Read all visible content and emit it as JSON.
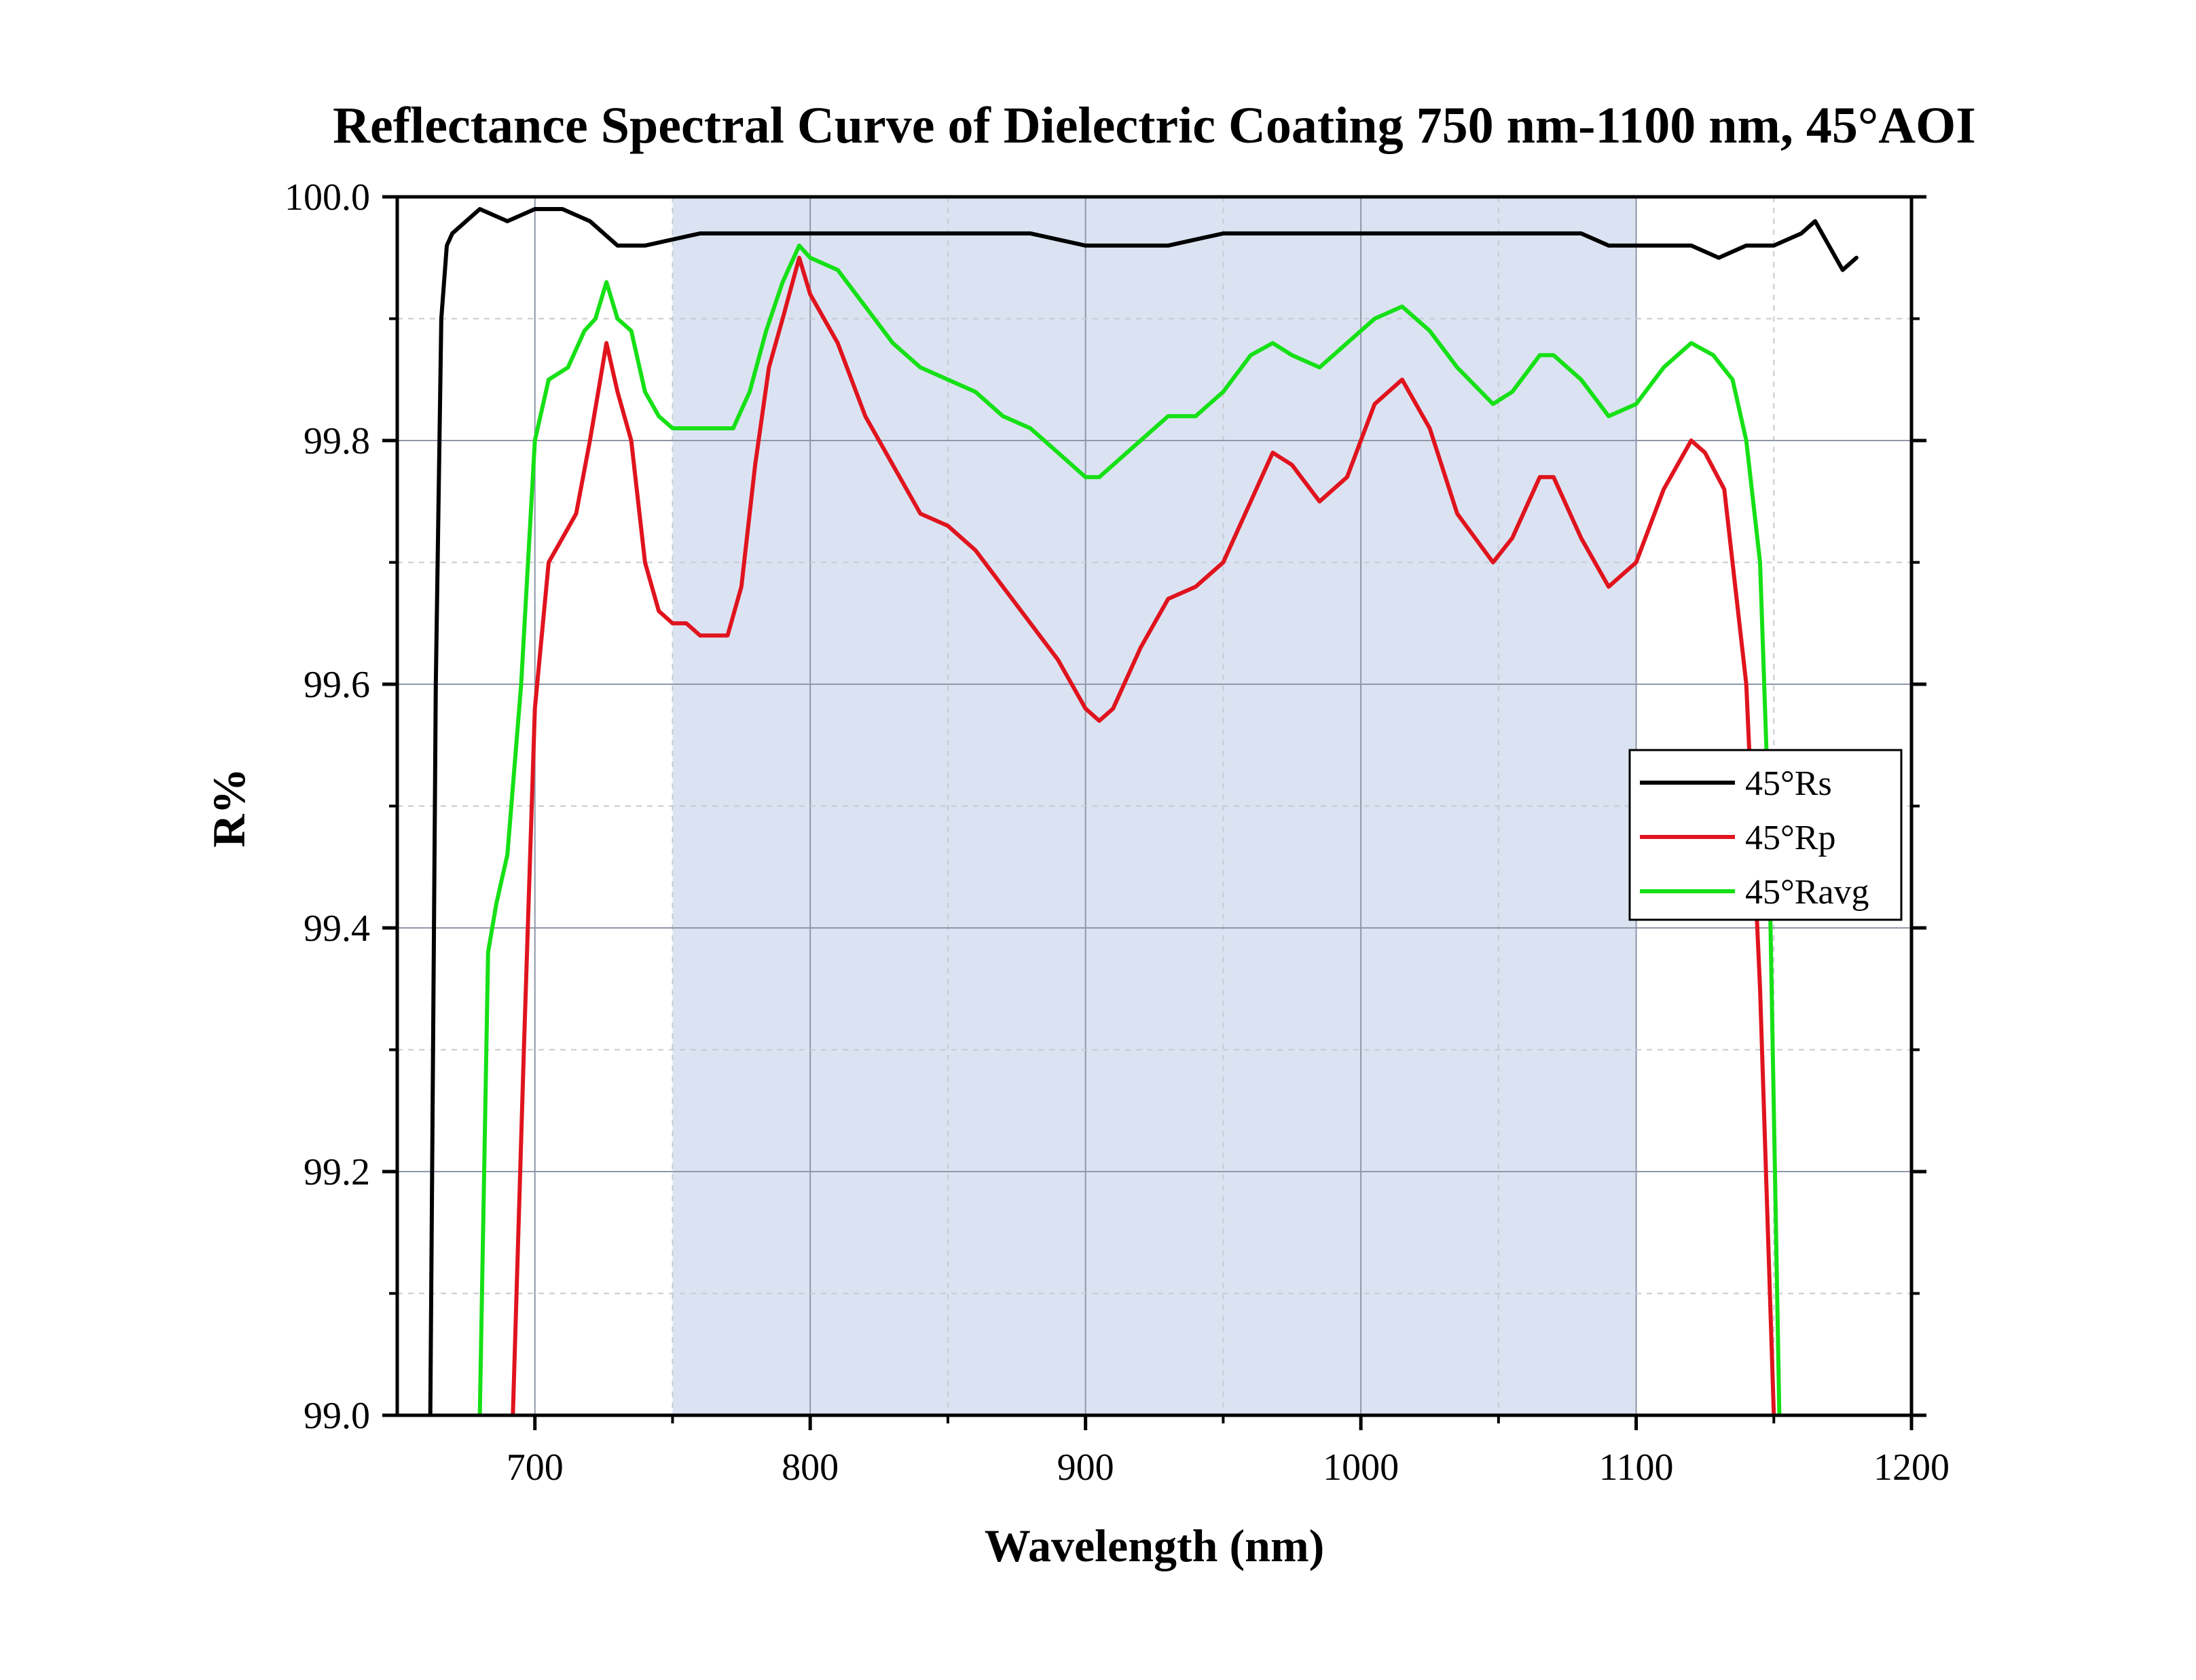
{
  "chart_data": {
    "type": "line",
    "title": "Reflectance Spectral Curve of Dielectric Coating 750 nm-1100 nm,  45°AOI",
    "xlabel": "Wavelength (nm)",
    "ylabel": "R%",
    "xlim": [
      650,
      1200
    ],
    "ylim": [
      99.0,
      100.0
    ],
    "xticks": [
      "700",
      "800",
      "900",
      "1000",
      "1100",
      "1200"
    ],
    "yticks": [
      "99.0",
      "99.2",
      "99.4",
      "99.6",
      "99.8",
      "100.0"
    ],
    "grid": true,
    "legend_position": "right",
    "shaded_band": {
      "x_start": 750,
      "x_end": 1100,
      "color": "#dbe3f2"
    },
    "series": [
      {
        "name": "45°Rs",
        "color": "#000000",
        "x": [
          662,
          664,
          666,
          668,
          670,
          675,
          680,
          690,
          700,
          710,
          720,
          730,
          740,
          760,
          780,
          800,
          850,
          880,
          900,
          910,
          930,
          950,
          1000,
          1050,
          1080,
          1090,
          1100,
          1110,
          1120,
          1130,
          1140,
          1150,
          1160,
          1165,
          1170,
          1175,
          1180
        ],
        "y": [
          99.0,
          99.6,
          99.9,
          99.96,
          99.97,
          99.98,
          99.99,
          99.98,
          99.99,
          99.99,
          99.98,
          99.96,
          99.96,
          99.97,
          99.97,
          99.97,
          99.97,
          99.97,
          99.96,
          99.96,
          99.96,
          99.97,
          99.97,
          99.97,
          99.97,
          99.96,
          99.96,
          99.96,
          99.96,
          99.95,
          99.96,
          99.96,
          99.97,
          99.98,
          99.96,
          99.94,
          99.95
        ]
      },
      {
        "name": "45°Rp",
        "color": "#e0141e",
        "x": [
          692,
          696,
          700,
          705,
          710,
          715,
          720,
          723,
          726,
          730,
          735,
          740,
          745,
          750,
          755,
          760,
          765,
          770,
          775,
          780,
          785,
          790,
          796,
          800,
          810,
          820,
          830,
          840,
          850,
          860,
          870,
          880,
          890,
          900,
          905,
          910,
          920,
          930,
          940,
          950,
          960,
          968,
          975,
          985,
          995,
          1005,
          1015,
          1025,
          1035,
          1048,
          1055,
          1065,
          1070,
          1080,
          1090,
          1100,
          1110,
          1120,
          1125,
          1132,
          1140,
          1145,
          1150
        ],
        "y": [
          99.0,
          99.3,
          99.58,
          99.7,
          99.72,
          99.74,
          99.8,
          99.84,
          99.88,
          99.84,
          99.8,
          99.7,
          99.66,
          99.65,
          99.65,
          99.64,
          99.64,
          99.64,
          99.68,
          99.78,
          99.86,
          99.9,
          99.95,
          99.92,
          99.88,
          99.82,
          99.78,
          99.74,
          99.73,
          99.71,
          99.68,
          99.65,
          99.62,
          99.58,
          99.57,
          99.58,
          99.63,
          99.67,
          99.68,
          99.7,
          99.75,
          99.79,
          99.78,
          99.75,
          99.77,
          99.83,
          99.85,
          99.81,
          99.74,
          99.7,
          99.72,
          99.77,
          99.77,
          99.72,
          99.68,
          99.7,
          99.76,
          99.8,
          99.79,
          99.76,
          99.6,
          99.35,
          99.0
        ]
      },
      {
        "name": "45°Ravg",
        "color": "#16e016",
        "x": [
          680,
          683,
          686,
          690,
          695,
          700,
          705,
          712,
          718,
          722,
          726,
          730,
          735,
          740,
          745,
          750,
          758,
          765,
          772,
          778,
          784,
          790,
          796,
          800,
          810,
          820,
          830,
          840,
          850,
          860,
          870,
          880,
          890,
          900,
          905,
          910,
          920,
          930,
          940,
          950,
          960,
          968,
          975,
          985,
          995,
          1005,
          1015,
          1025,
          1035,
          1048,
          1055,
          1065,
          1070,
          1080,
          1090,
          1100,
          1110,
          1120,
          1128,
          1135,
          1140,
          1145,
          1148,
          1152
        ],
        "y": [
          99.0,
          99.38,
          99.42,
          99.46,
          99.6,
          99.8,
          99.85,
          99.86,
          99.89,
          99.9,
          99.93,
          99.9,
          99.89,
          99.84,
          99.82,
          99.81,
          99.81,
          99.81,
          99.81,
          99.84,
          99.89,
          99.93,
          99.96,
          99.95,
          99.94,
          99.91,
          99.88,
          99.86,
          99.85,
          99.84,
          99.82,
          99.81,
          99.79,
          99.77,
          99.77,
          99.78,
          99.8,
          99.82,
          99.82,
          99.84,
          99.87,
          99.88,
          99.87,
          99.86,
          99.88,
          99.9,
          99.91,
          99.89,
          99.86,
          99.83,
          99.84,
          99.87,
          99.87,
          99.85,
          99.82,
          99.83,
          99.86,
          99.88,
          99.87,
          99.85,
          99.8,
          99.7,
          99.5,
          99.0
        ]
      }
    ]
  }
}
